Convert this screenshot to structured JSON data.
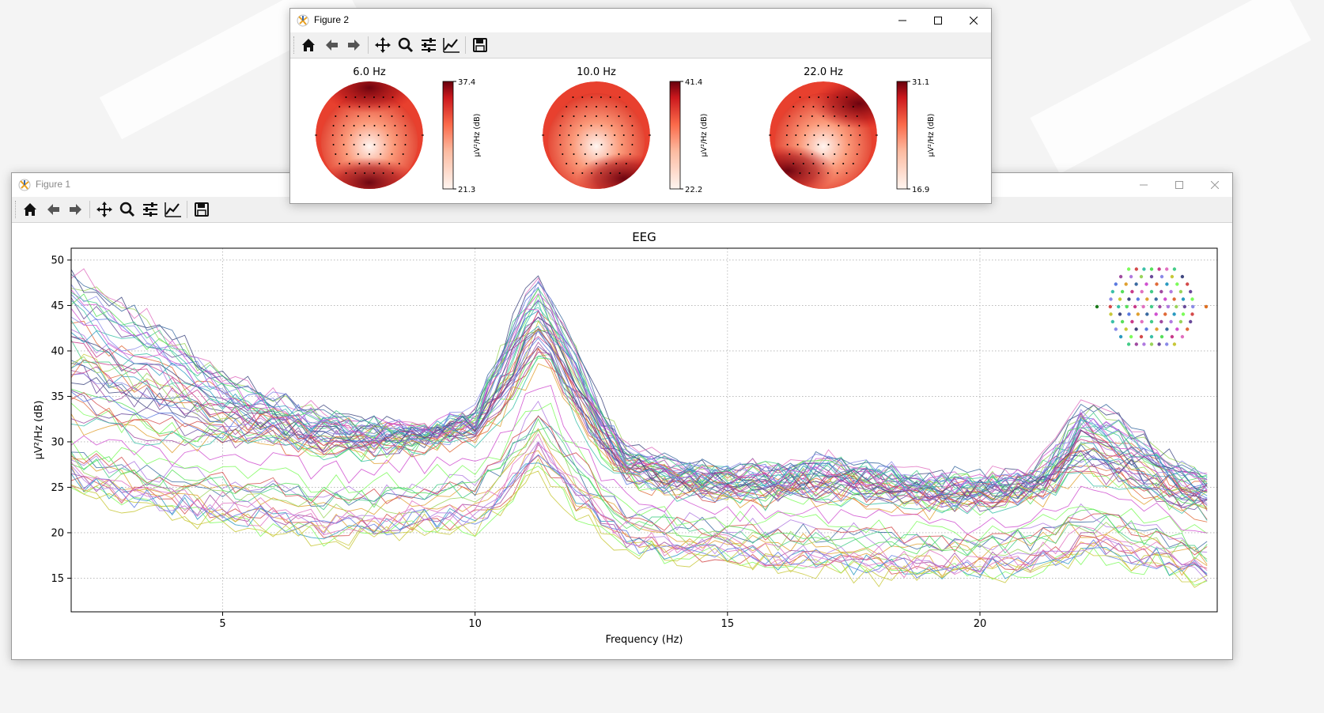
{
  "figure1": {
    "title": "Figure 1",
    "active": false,
    "toolbar": [
      "home-icon",
      "back-icon",
      "forward-icon",
      "pan-icon",
      "zoom-icon",
      "configure-subplots-icon",
      "edit-axis-icon",
      "save-icon"
    ]
  },
  "figure2": {
    "title": "Figure 2",
    "active": true,
    "toolbar": [
      "home-icon",
      "back-icon",
      "forward-icon",
      "pan-icon",
      "zoom-icon",
      "configure-subplots-icon",
      "edit-axis-icon",
      "save-icon"
    ]
  },
  "chart_data": [
    {
      "type": "line",
      "title": "EEG",
      "xlabel": "Frequency (Hz)",
      "ylabel": "µV²/Hz (dB)",
      "xlim": [
        2,
        24.7
      ],
      "ylim": [
        11.3,
        51.3
      ],
      "xticks": [
        "5",
        "10",
        "15",
        "20"
      ],
      "yticks": [
        "15",
        "20",
        "25",
        "30",
        "35",
        "40",
        "45",
        "50"
      ],
      "grid": true,
      "legend": "sensor layout inset, top-right",
      "line_colors": [
        "#7cfc5a",
        "#57e05a",
        "#44cc88",
        "#9ad45a",
        "#c8c838",
        "#e0a030",
        "#e06a38",
        "#d44a4a",
        "#c83a8a",
        "#a04aa0",
        "#6a4a9a",
        "#404880",
        "#3a6aa0",
        "#2a9ac0",
        "#3ac0a8",
        "#e070c0",
        "#b07ae0",
        "#8a8ae8",
        "#5a7ae0",
        "#d050d0"
      ],
      "series_envelope": {
        "x": [
          2,
          3,
          4,
          5,
          6,
          7,
          8,
          9,
          10,
          10.5,
          11,
          11.3,
          11.6,
          12,
          12.5,
          13,
          14,
          15,
          16,
          17,
          18,
          19,
          20,
          21,
          21.5,
          22,
          22.5,
          23,
          23.5,
          24,
          24.7
        ],
        "high": [
          49,
          45,
          42,
          37,
          35,
          33,
          32,
          31,
          33,
          40,
          46,
          48,
          44,
          40,
          34,
          29,
          27,
          27,
          27,
          28,
          27,
          26,
          26,
          26,
          29,
          34,
          33,
          31,
          29,
          27,
          26
        ],
        "typical": [
          32,
          31,
          30,
          30,
          30,
          29,
          29,
          30,
          31,
          33,
          37,
          40,
          37,
          33,
          29,
          26,
          25,
          24,
          24,
          24,
          24,
          23,
          23,
          24,
          25,
          27,
          26,
          25,
          24,
          23,
          22
        ],
        "low": [
          25,
          23,
          22,
          21,
          20,
          19,
          19,
          20,
          20,
          22,
          25,
          27,
          24,
          22,
          20,
          18,
          17,
          17,
          16,
          16,
          15,
          15,
          15,
          15,
          16,
          17,
          17,
          16,
          16,
          15,
          14
        ]
      }
    },
    {
      "type": "heatmap",
      "title": "6.0 Hz",
      "colorbar_label": "µV²/Hz (dB)",
      "colorbar_max": "37.4",
      "colorbar_min": "21.3",
      "hotspots": [
        "front-edge",
        "bottom-edge"
      ]
    },
    {
      "type": "heatmap",
      "title": "10.0 Hz",
      "colorbar_label": "µV²/Hz (dB)",
      "colorbar_max": "41.4",
      "colorbar_min": "22.2",
      "hotspots": [
        "bottom-right"
      ]
    },
    {
      "type": "heatmap",
      "title": "22.0 Hz",
      "colorbar_label": "µV²/Hz (dB)",
      "colorbar_max": "31.1",
      "colorbar_min": "16.9",
      "hotspots": [
        "top-right",
        "bottom-left"
      ]
    }
  ]
}
